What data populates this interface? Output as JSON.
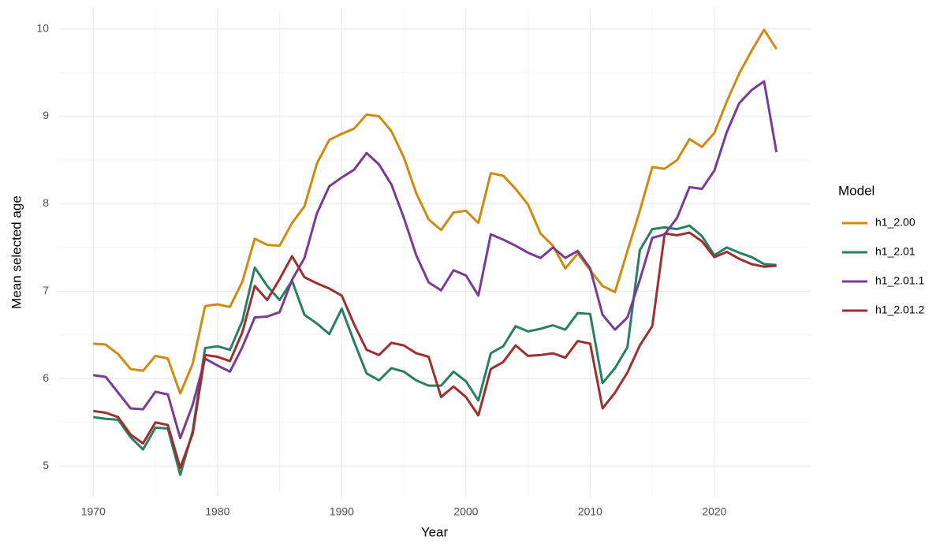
{
  "chart_data": {
    "type": "line",
    "x_label": "Year",
    "y_label": "Mean selected age",
    "legend_title": "Model",
    "x": [
      1970,
      1971,
      1972,
      1973,
      1974,
      1975,
      1976,
      1977,
      1978,
      1979,
      1980,
      1981,
      1982,
      1983,
      1984,
      1985,
      1986,
      1987,
      1988,
      1989,
      1990,
      1991,
      1992,
      1993,
      1994,
      1995,
      1996,
      1997,
      1998,
      1999,
      2000,
      2001,
      2002,
      2003,
      2004,
      2005,
      2006,
      2007,
      2008,
      2009,
      2010,
      2011,
      2012,
      2013,
      2014,
      2015,
      2016,
      2017,
      2018,
      2019,
      2020,
      2021,
      2022,
      2023,
      2024,
      2025
    ],
    "series": [
      {
        "name": "h1_2.00",
        "color": "#d08a0e",
        "values": [
          6.4,
          6.39,
          6.28,
          6.11,
          6.09,
          6.26,
          6.23,
          5.83,
          6.17,
          6.83,
          6.85,
          6.82,
          7.11,
          7.6,
          7.53,
          7.52,
          7.78,
          7.97,
          8.46,
          8.73,
          8.8,
          8.86,
          9.02,
          9.0,
          8.83,
          8.53,
          8.12,
          7.82,
          7.7,
          7.9,
          7.92,
          7.78,
          8.35,
          8.32,
          8.17,
          7.99,
          7.66,
          7.52,
          7.26,
          7.43,
          7.24,
          7.06,
          6.99,
          7.46,
          7.92,
          8.42,
          8.4,
          8.5,
          8.74,
          8.65,
          8.81,
          9.17,
          9.49,
          9.75,
          9.99,
          9.77
        ]
      },
      {
        "name": "h1_2.01",
        "color": "#2a7f62",
        "values": [
          5.56,
          5.54,
          5.53,
          5.33,
          5.19,
          5.44,
          5.43,
          4.9,
          5.4,
          6.35,
          6.37,
          6.33,
          6.66,
          7.27,
          7.06,
          6.9,
          7.12,
          6.73,
          6.63,
          6.51,
          6.8,
          6.42,
          6.06,
          5.98,
          6.12,
          6.08,
          5.98,
          5.92,
          5.92,
          6.08,
          5.97,
          5.75,
          6.29,
          6.37,
          6.6,
          6.54,
          6.57,
          6.61,
          6.56,
          6.75,
          6.74,
          5.95,
          6.12,
          6.36,
          7.47,
          7.71,
          7.73,
          7.71,
          7.75,
          7.63,
          7.41,
          7.5,
          7.44,
          7.39,
          7.31,
          7.3
        ]
      },
      {
        "name": "h1_2.01.1",
        "color": "#7b3a96",
        "values": [
          6.04,
          6.02,
          5.84,
          5.66,
          5.65,
          5.85,
          5.82,
          5.32,
          5.7,
          6.23,
          6.15,
          6.08,
          6.36,
          6.7,
          6.71,
          6.76,
          7.13,
          7.38,
          7.89,
          8.2,
          8.3,
          8.39,
          8.58,
          8.45,
          8.22,
          7.84,
          7.41,
          7.1,
          7.01,
          7.24,
          7.18,
          6.95,
          7.65,
          7.59,
          7.52,
          7.44,
          7.38,
          7.5,
          7.38,
          7.46,
          7.26,
          6.73,
          6.56,
          6.7,
          7.13,
          7.61,
          7.65,
          7.84,
          8.19,
          8.17,
          8.38,
          8.82,
          9.15,
          9.3,
          9.4,
          8.59
        ]
      },
      {
        "name": "h1_2.01.2",
        "color": "#9e2f30",
        "values": [
          5.63,
          5.61,
          5.56,
          5.36,
          5.26,
          5.5,
          5.47,
          4.98,
          5.37,
          6.27,
          6.25,
          6.2,
          6.53,
          7.06,
          6.9,
          7.14,
          7.4,
          7.16,
          7.09,
          7.03,
          6.95,
          6.62,
          6.33,
          6.27,
          6.41,
          6.38,
          6.29,
          6.25,
          5.79,
          5.91,
          5.79,
          5.58,
          6.11,
          6.19,
          6.38,
          6.26,
          6.27,
          6.29,
          6.24,
          6.43,
          6.4,
          5.66,
          5.84,
          6.07,
          6.38,
          6.6,
          7.66,
          7.64,
          7.67,
          7.57,
          7.39,
          7.45,
          7.37,
          7.31,
          7.28,
          7.29
        ]
      }
    ],
    "xlim": [
      1967.25,
      2027.75
    ],
    "xticks": [
      1970,
      1980,
      1990,
      2000,
      2010,
      2020
    ],
    "ylim": [
      4.65,
      10.24
    ],
    "yticks": [
      5,
      6,
      7,
      8,
      9,
      10
    ],
    "grid": true,
    "legend": "right"
  }
}
